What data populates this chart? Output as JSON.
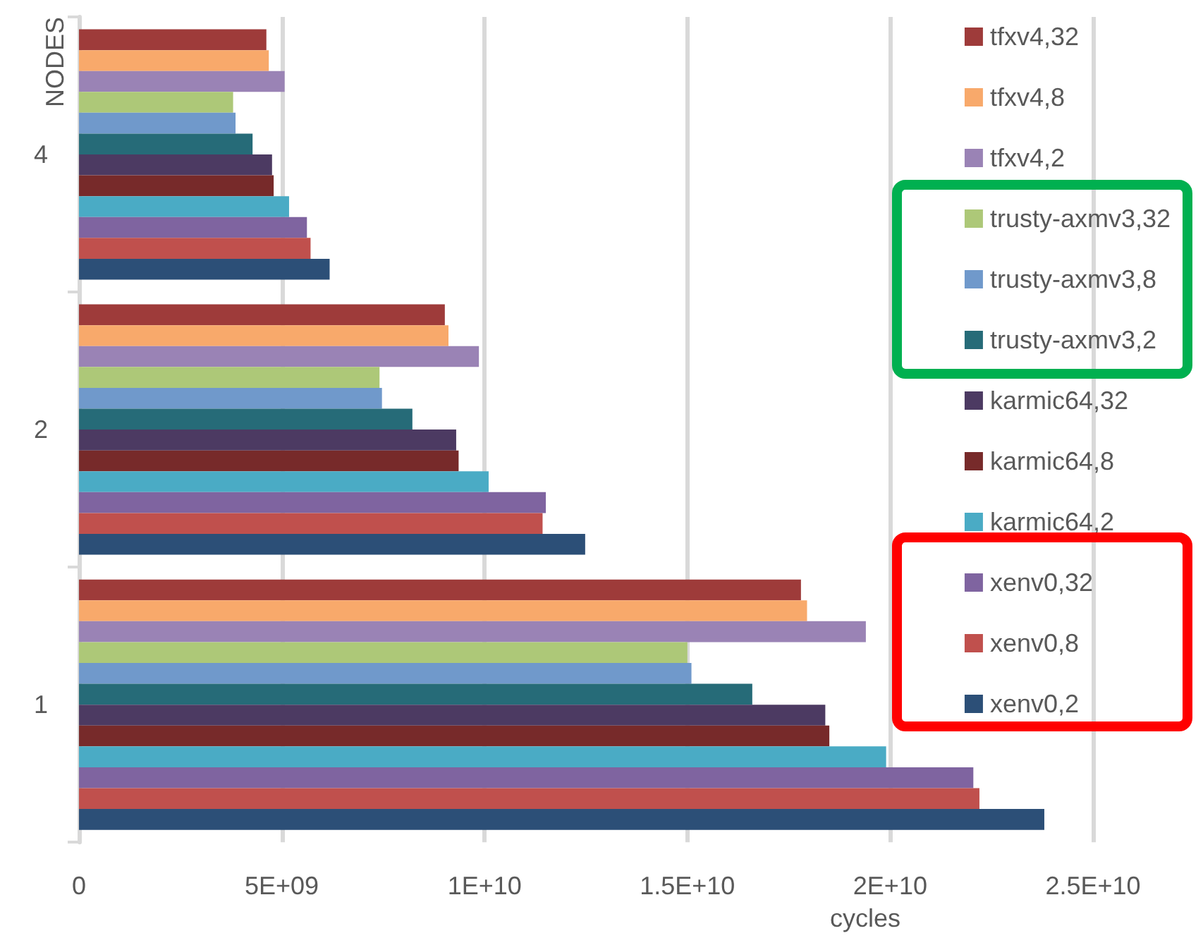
{
  "chart_data": {
    "type": "bar",
    "orientation": "horizontal",
    "xlabel": "cycles",
    "ylabel": "NODES",
    "categories": [
      "4",
      "2",
      "1"
    ],
    "series": [
      {
        "name": "tfxv4,32",
        "color": "#9e3b3a",
        "values": [
          4620000000.0,
          9020000000.0,
          17800000000.0
        ]
      },
      {
        "name": "tfxv4,8",
        "color": "#f8a96b",
        "values": [
          4680000000.0,
          9110000000.0,
          17950000000.0
        ]
      },
      {
        "name": "tfxv4,2",
        "color": "#9a83b5",
        "values": [
          5070000000.0,
          9860000000.0,
          19400000000.0
        ]
      },
      {
        "name": "trusty-axmv3,32",
        "color": "#adc878",
        "values": [
          3800000000.0,
          7410000000.0,
          15000000000.0
        ]
      },
      {
        "name": "trusty-axmv3,8",
        "color": "#7099cb",
        "values": [
          3860000000.0,
          7470000000.0,
          15100000000.0
        ]
      },
      {
        "name": "trusty-axmv3,2",
        "color": "#266b78",
        "values": [
          4280000000.0,
          8220000000.0,
          16600000000.0
        ]
      },
      {
        "name": "karmic64,32",
        "color": "#4c3a62",
        "values": [
          4760000000.0,
          9300000000.0,
          18400000000.0
        ]
      },
      {
        "name": "karmic64,8",
        "color": "#772a2a",
        "values": [
          4800000000.0,
          9360000000.0,
          18500000000.0
        ]
      },
      {
        "name": "karmic64,2",
        "color": "#4aabc5",
        "values": [
          5180000000.0,
          10100000000.0,
          19900000000.0
        ]
      },
      {
        "name": "xenv0,32",
        "color": "#7f64a0",
        "values": [
          5620000000.0,
          11510000000.0,
          22050000000.0
        ]
      },
      {
        "name": "xenv0,8",
        "color": "#c0504d",
        "values": [
          5710000000.0,
          11430000000.0,
          22200000000.0
        ]
      },
      {
        "name": "xenv0,2",
        "color": "#2c4f77",
        "values": [
          6180000000.0,
          12480000000.0,
          23800000000.0
        ]
      }
    ],
    "xlim": [
      0,
      25000000000.0
    ],
    "xticks": [
      0,
      {
        "value": 5000000000.0,
        "label": "5E+09"
      },
      {
        "value": 10000000000.0,
        "label": "1E+10"
      },
      {
        "value": 15000000000.0,
        "label": "1.5E+10"
      },
      {
        "value": 20000000000.0,
        "label": "2E+10"
      },
      {
        "value": 25000000000.0,
        "label": "2.5E+10"
      }
    ],
    "grid": "x",
    "legend": "right"
  }
}
